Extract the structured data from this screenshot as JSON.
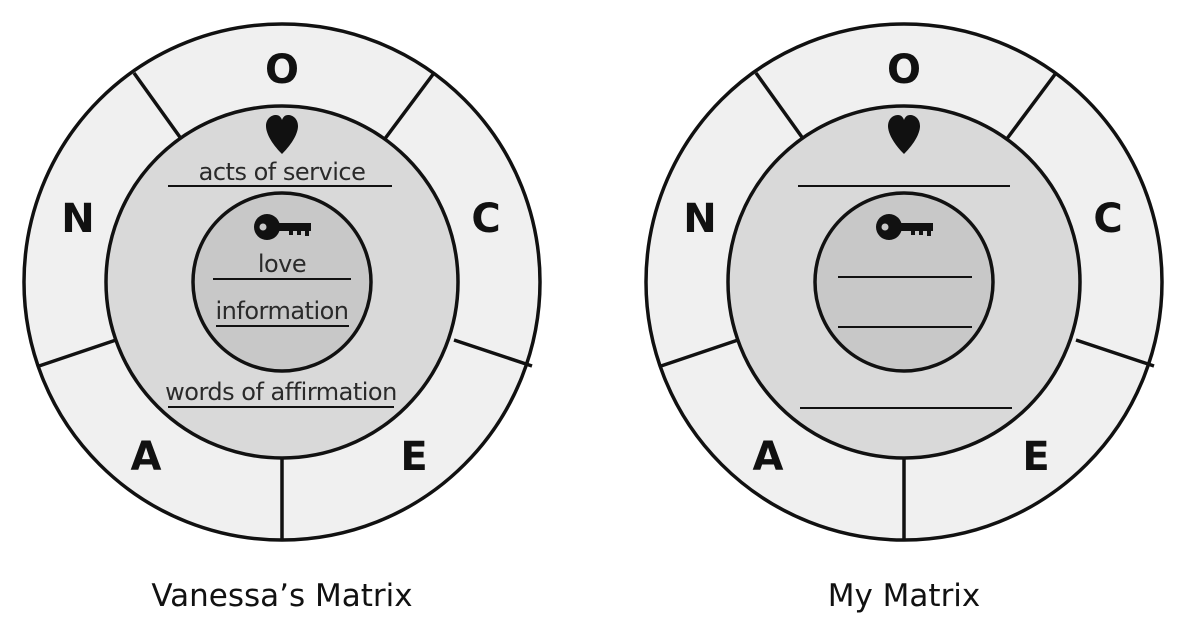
{
  "matrices": [
    {
      "title": "Vanessa’s Matrix",
      "segments": [
        "O",
        "C",
        "E",
        "A",
        "N"
      ],
      "heart_icon": "heart-icon",
      "key_icon": "key-icon",
      "outer_top_value": "acts of service",
      "inner_top_value": "love",
      "inner_bottom_value": "information",
      "outer_bottom_value": "words of affirmation"
    },
    {
      "title": "My Matrix",
      "segments": [
        "O",
        "C",
        "E",
        "A",
        "N"
      ],
      "heart_icon": "heart-icon",
      "key_icon": "key-icon",
      "outer_top_value": "",
      "inner_top_value": "",
      "inner_bottom_value": "",
      "outer_bottom_value": ""
    }
  ],
  "colors": {
    "outer_ring": "#f0f0f0",
    "middle_ring": "#d9d9d9",
    "inner_circle": "#c8c8c8",
    "stroke": "#111111"
  }
}
